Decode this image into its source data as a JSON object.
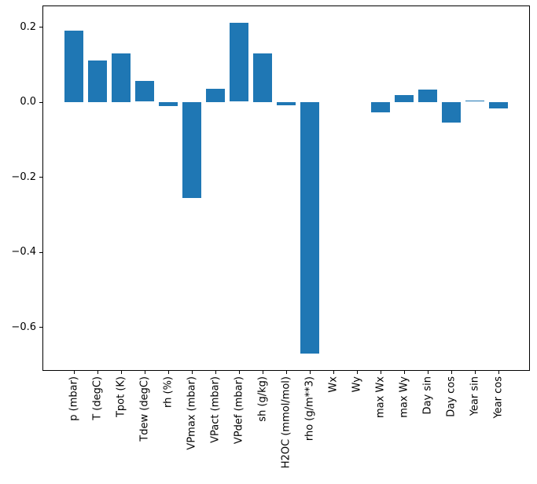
{
  "chart_data": {
    "type": "bar",
    "title": "",
    "xlabel": "",
    "ylabel": "",
    "categories": [
      "p (mbar)",
      "T (degC)",
      "Tpot (K)",
      "Tdew (degC)",
      "rh (%)",
      "VPmax (mbar)",
      "VPact (mbar)",
      "VPdef (mbar)",
      "sh (g/kg)",
      "H2OC (mmol/mol)",
      "rho (g/m**3)",
      "Wx",
      "Wy",
      "max Wx",
      "max Wy",
      "Day sin",
      "Day cos",
      "Year sin",
      "Year cos"
    ],
    "values": [
      0.19,
      0.11,
      0.13,
      0.055,
      -0.011,
      -0.255,
      0.035,
      0.21,
      0.13,
      -0.008,
      -0.67,
      0.0,
      0.0,
      -0.027,
      0.019,
      0.033,
      -0.054,
      0.003,
      -0.016
    ],
    "yticks": [
      0.2,
      0.0,
      -0.2,
      -0.4,
      -0.6
    ],
    "ytick_labels": [
      "0.2",
      "0.0",
      "−0.2",
      "−0.4",
      "−0.6"
    ],
    "ylim": [
      -0.717,
      0.257
    ],
    "bar_color": "#1f77b4",
    "axis_color": "#000000",
    "background_color": "#ffffff",
    "grid": false,
    "legend_position": "none",
    "x_label_rotation_deg": 90
  }
}
